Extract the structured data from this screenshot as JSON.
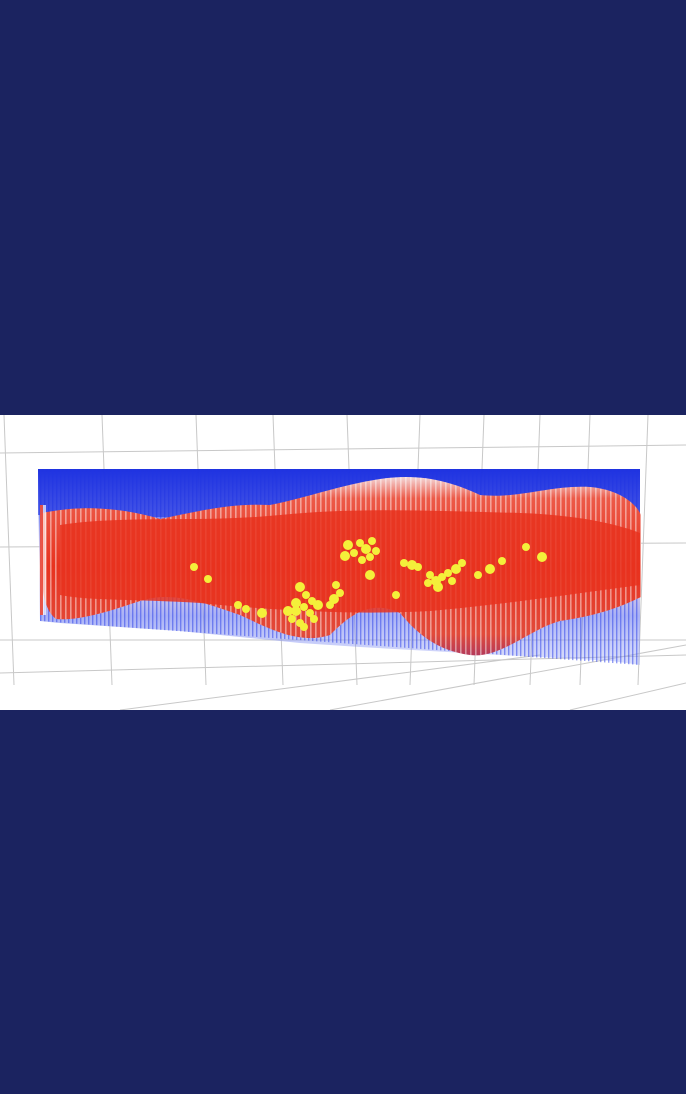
{
  "colors": {
    "background": "#1b2360",
    "canvas": "#ffffff",
    "grid": "#c8c8c8",
    "low_value": "#1a2fe0",
    "mid_value": "#ffffff",
    "high_value": "#e8321f",
    "points": "#f4f03a"
  },
  "scene": {
    "type": "3d-volume-render",
    "colormap": [
      "blue",
      "white",
      "red"
    ],
    "overlay": "yellow-point-cloud",
    "grid": true
  }
}
